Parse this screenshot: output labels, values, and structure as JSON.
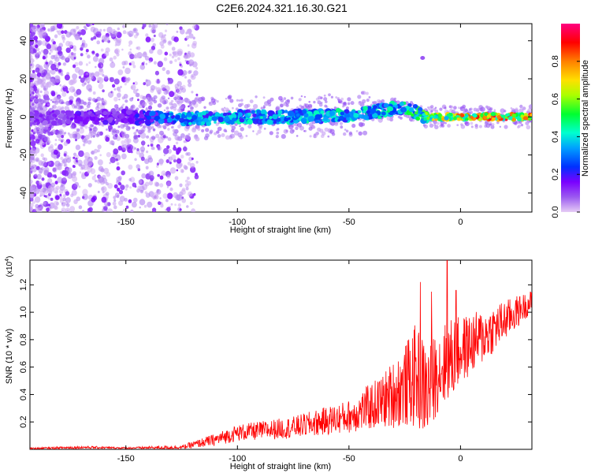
{
  "title": "C2E6.2024.321.16.30.G21",
  "chart_data": [
    {
      "type": "heatmap",
      "title": "C2E6.2024.321.16.30.G21",
      "xlabel": "Height of straight line (km)",
      "ylabel": "Frequency (Hz)",
      "xlim": [
        -193,
        32
      ],
      "ylim": [
        -50,
        49
      ],
      "xticks": [
        -150,
        -100,
        -50,
        0
      ],
      "yticks": [
        -40,
        -20,
        0,
        20,
        40
      ],
      "colorbar": {
        "label": "Normalized spectral amplitude",
        "range": [
          0,
          1
        ],
        "ticks": [
          0.0,
          0.2,
          0.4,
          0.6,
          0.8
        ],
        "colors": [
          "#e6ccf5",
          "#7a00ff",
          "#0040ff",
          "#00c8ff",
          "#00ff60",
          "#aaff00",
          "#ffe000",
          "#ff8000",
          "#ff0000",
          "#ff0080"
        ]
      },
      "ridge": {
        "x": [
          -193,
          -170,
          -150,
          -125,
          -100,
          -75,
          -50,
          -25,
          -15,
          0,
          15,
          32
        ],
        "freq": [
          -1,
          0,
          0,
          -1,
          0,
          0,
          1,
          5,
          0,
          0,
          0,
          0
        ],
        "amplitude": [
          0.15,
          0.2,
          0.2,
          0.45,
          0.45,
          0.45,
          0.5,
          0.5,
          0.7,
          0.85,
          0.9,
          0.9
        ]
      }
    },
    {
      "type": "line",
      "xlabel": "Height of straight line (km)",
      "ylabel": "SNR (10 * v/v)",
      "yscale_label": "(x10",
      "yscale_exp": "4",
      "yscale_close": ")",
      "xlim": [
        -193,
        32
      ],
      "ylim": [
        0,
        13800
      ],
      "xticks": [
        -150,
        -100,
        -50,
        0
      ],
      "yticks": [
        2000,
        4000,
        6000,
        8000,
        10000,
        12000
      ],
      "ytick_labels": [
        "0.2",
        "0.4",
        "0.6",
        "0.8",
        "1.0",
        "1.2"
      ],
      "color": "#ff0000",
      "envelope": {
        "x": [
          -193,
          -170,
          -150,
          -125,
          -110,
          -100,
          -75,
          -50,
          -35,
          -25,
          -20,
          -15,
          -10,
          -5,
          0,
          10,
          20,
          32
        ],
        "mean": [
          60,
          150,
          100,
          150,
          700,
          1200,
          1600,
          2400,
          3500,
          4600,
          5400,
          4200,
          5800,
          6400,
          7200,
          8200,
          9400,
          10800
        ],
        "spread": [
          60,
          100,
          60,
          150,
          450,
          600,
          800,
          1200,
          2000,
          3000,
          3800,
          3500,
          3000,
          3200,
          2500,
          2000,
          1500,
          800
        ]
      },
      "peaks": [
        {
          "x": -18,
          "y": 12200
        },
        {
          "x": -6,
          "y": 13800
        },
        {
          "x": -13,
          "y": 11500
        },
        {
          "x": -2,
          "y": 11600
        }
      ]
    }
  ]
}
